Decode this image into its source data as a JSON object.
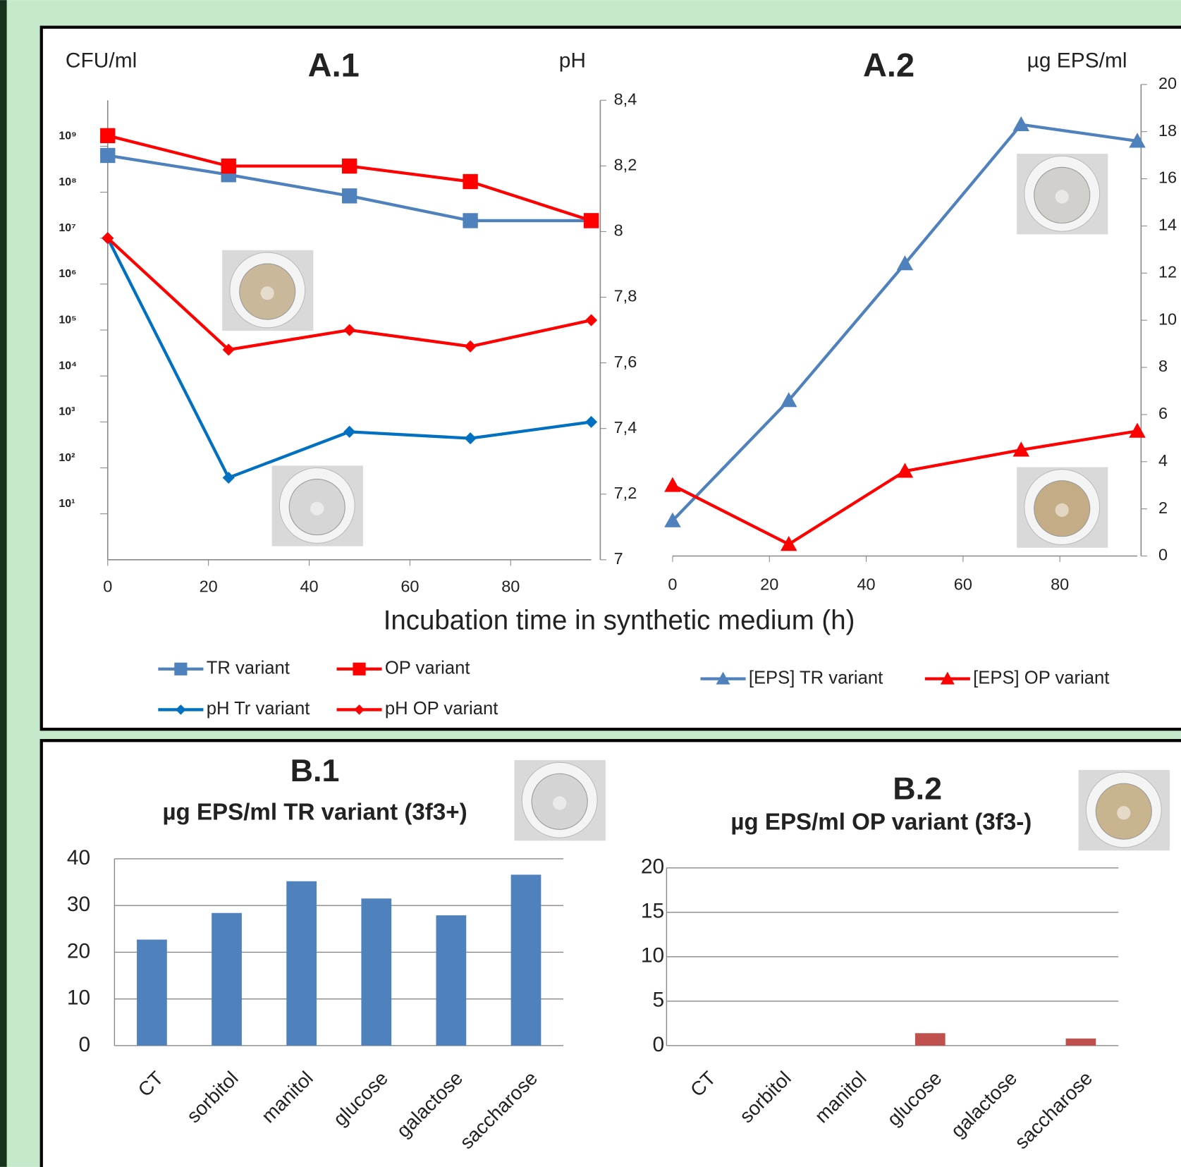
{
  "chart_data": [
    {
      "type": "line",
      "title": "A.1",
      "ylabel": "CFU/ml",
      "y2label": "pH",
      "xlabel": "Incubation time in synthetic medium (h)",
      "x": [
        0,
        24,
        48,
        72,
        96
      ],
      "xlim": [
        0,
        96
      ],
      "xticks": [
        0,
        20,
        40,
        60,
        80
      ],
      "yscale": "log",
      "ylim": [
        1,
        10000000000
      ],
      "yticks": [
        {
          "value": 10,
          "label": "10¹"
        },
        {
          "value": 100,
          "label": "10²"
        },
        {
          "value": 1000,
          "label": "10³"
        },
        {
          "value": 10000,
          "label": "10⁴"
        },
        {
          "value": 100000,
          "label": "10⁵"
        },
        {
          "value": 1000000,
          "label": "10⁶"
        },
        {
          "value": 10000000,
          "label": "10⁷"
        },
        {
          "value": 100000000,
          "label": "10⁸"
        },
        {
          "value": 1000000000,
          "label": "10⁹"
        }
      ],
      "y2lim": [
        7,
        8.4
      ],
      "y2ticks": [
        7,
        {
          "value": 7.2,
          "label": "7,2"
        },
        {
          "value": 7.4,
          "label": "7,4"
        },
        {
          "value": 7.6,
          "label": "7,6"
        },
        {
          "value": 7.8,
          "label": "7,8"
        },
        8,
        {
          "value": 8.2,
          "label": "8,2"
        },
        {
          "value": 8.4,
          "label": "8,4"
        }
      ],
      "series": [
        {
          "name": "TR variant",
          "color": "#4f81bd",
          "marker": "square",
          "values": [
            630000000,
            240000000,
            83000000,
            24000000,
            24000000
          ]
        },
        {
          "name": "OP variant",
          "color": "#ff0000",
          "marker": "square",
          "values": [
            1700000000,
            370000000,
            370000000,
            170000000,
            24000000
          ]
        },
        {
          "name": "pH Tr variant",
          "color": "#0070c0",
          "marker": "diamond",
          "axis": "y2",
          "values": [
            7.98,
            7.25,
            7.39,
            7.37,
            7.42
          ]
        },
        {
          "name": "pH OP variant",
          "color": "#ff0000",
          "marker": "diamond",
          "axis": "y2",
          "values": [
            7.98,
            7.64,
            7.7,
            7.65,
            7.73
          ]
        }
      ]
    },
    {
      "type": "line",
      "title": "A.2",
      "ylabel": "µg EPS/ml",
      "x": [
        0,
        24,
        48,
        72,
        96
      ],
      "xlim": [
        0,
        96
      ],
      "xticks": [
        0,
        20,
        40,
        60,
        80
      ],
      "ylim": [
        0,
        20
      ],
      "yticks": [
        0,
        2,
        4,
        6,
        8,
        10,
        12,
        14,
        16,
        18,
        20
      ],
      "series": [
        {
          "name": "[EPS] TR variant",
          "color": "#4f81bd",
          "marker": "triangle",
          "values": [
            1.5,
            6.6,
            12.4,
            18.3,
            17.6
          ]
        },
        {
          "name": "[EPS] OP variant",
          "color": "#ff0000",
          "marker": "triangle",
          "values": [
            3.0,
            0.5,
            3.6,
            4.5,
            5.3
          ]
        }
      ]
    },
    {
      "type": "bar",
      "title": "B.1",
      "subtitle": "µg EPS/ml TR variant (3f3+)",
      "categories": [
        "CT",
        "sorbitol",
        "manitol",
        "glucose",
        "galactose",
        "saccharose"
      ],
      "values": [
        22.7,
        28.4,
        35.2,
        31.5,
        27.9,
        36.6
      ],
      "color": "#4f81bd",
      "ylim": [
        0,
        40
      ],
      "yticks": [
        0,
        10,
        20,
        30,
        40
      ],
      "grid": true
    },
    {
      "type": "bar",
      "title": "B.2",
      "subtitle": "µg EPS/ml OP variant (3f3-)",
      "categories": [
        "CT",
        "sorbitol",
        "manitol",
        "glucose",
        "galactose",
        "saccharose"
      ],
      "values": [
        0,
        0,
        0,
        1.4,
        0,
        0.8
      ],
      "color": "#c0504d",
      "ylim": [
        0,
        20
      ],
      "yticks": [
        0,
        5,
        10,
        15,
        20
      ],
      "grid": true
    }
  ]
}
